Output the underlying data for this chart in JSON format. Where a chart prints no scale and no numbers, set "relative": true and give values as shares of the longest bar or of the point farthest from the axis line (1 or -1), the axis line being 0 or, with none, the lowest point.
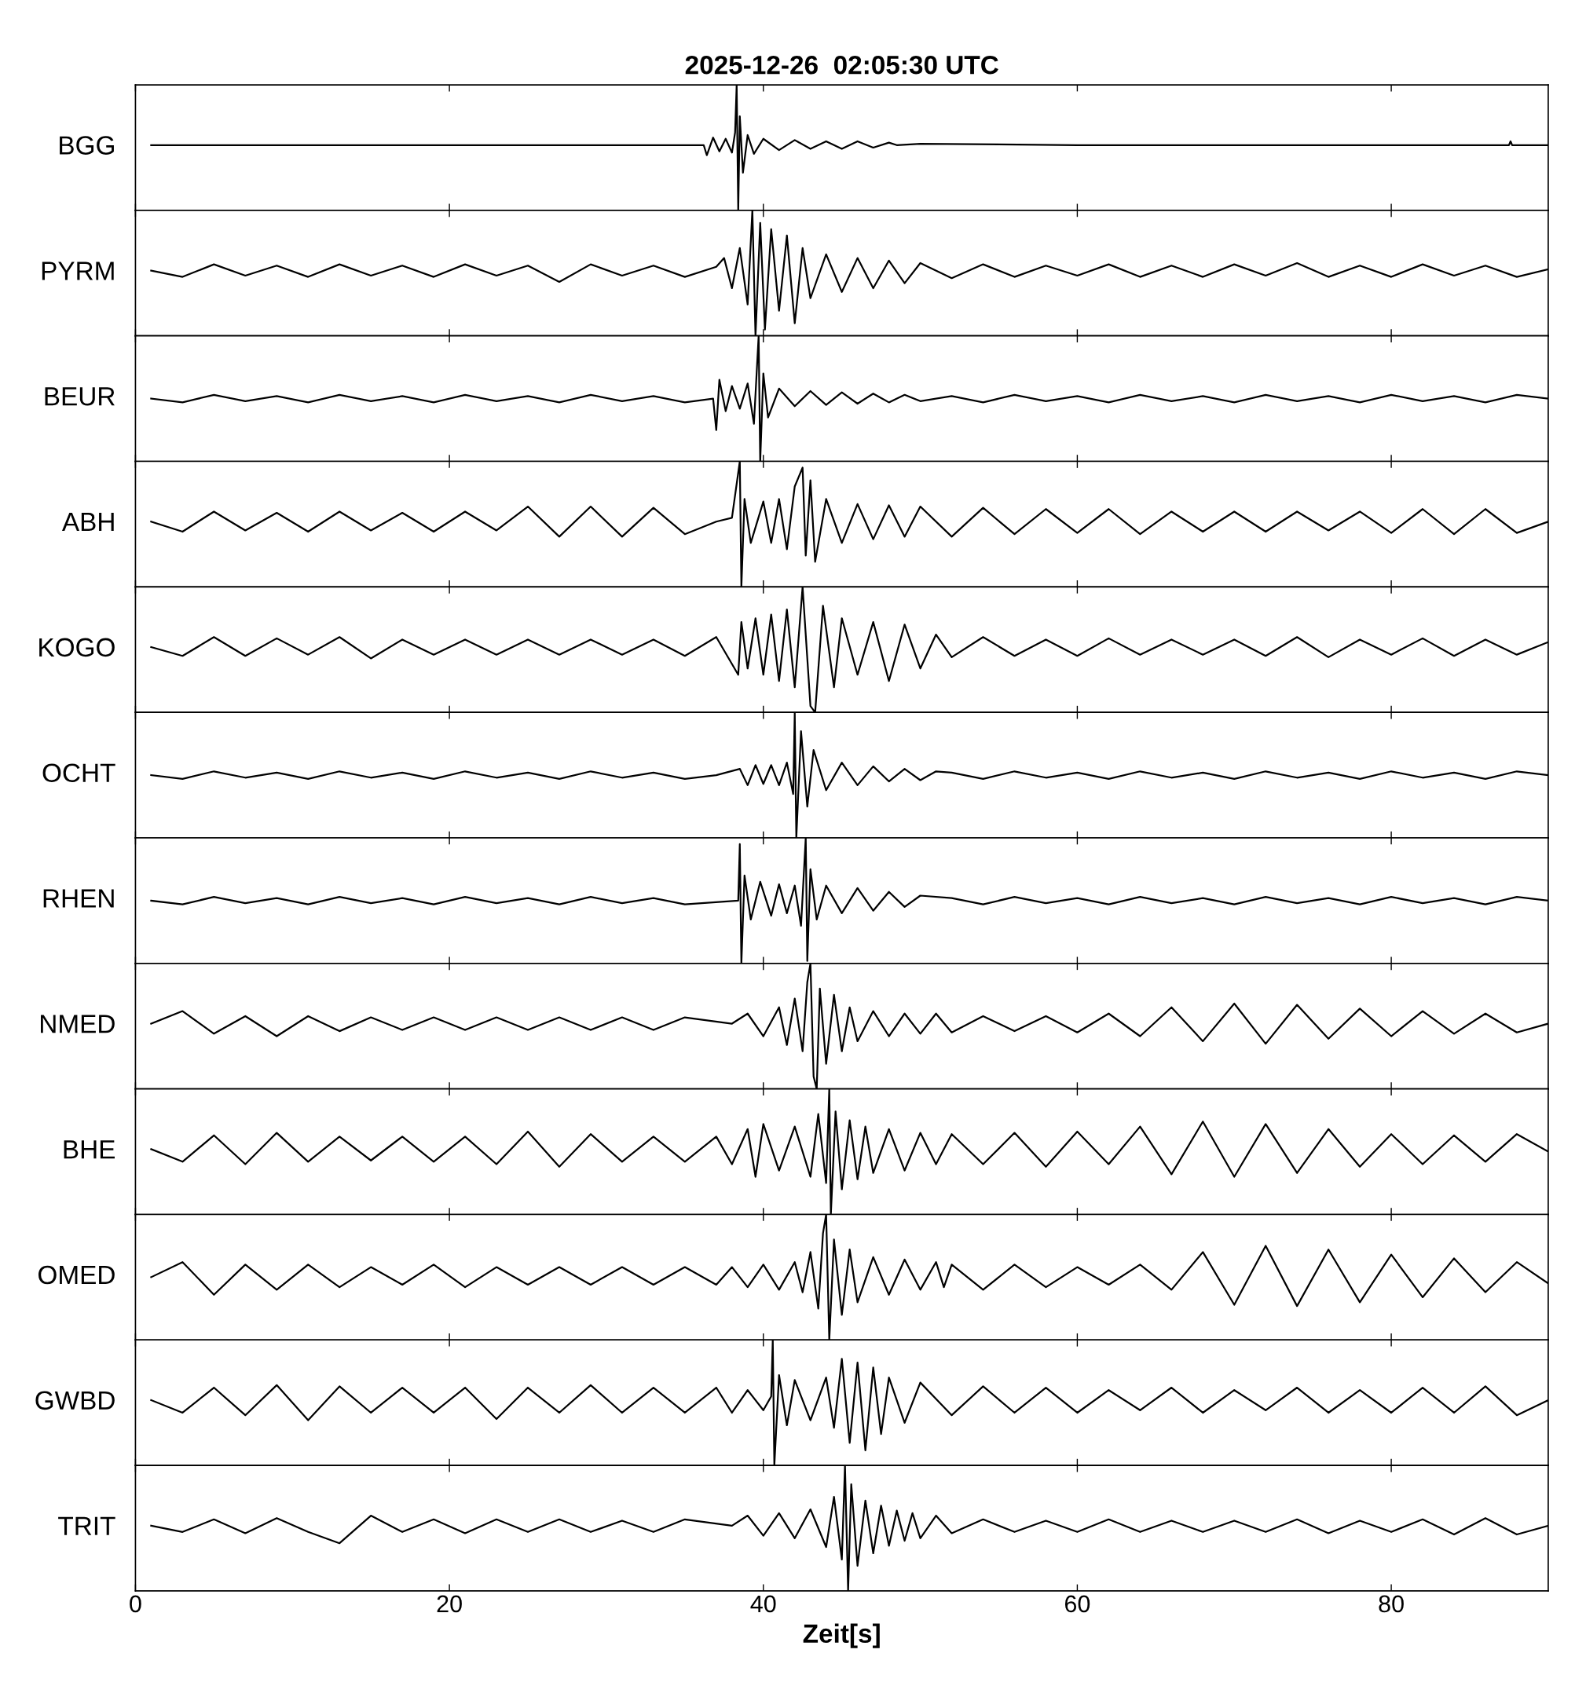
{
  "chart_data": [
    {
      "type": "line",
      "title": "2025-12-26  02:05:30 UTC",
      "ylabel": "BGG",
      "relative": true,
      "xlim": [
        0,
        90
      ],
      "xticks": [
        0,
        20,
        40,
        60,
        80
      ],
      "tick_labels": false,
      "series": [
        {
          "color": "#000000",
          "x": [
            1,
            10,
            20,
            30,
            36.2,
            36.4,
            36.8,
            37.2,
            37.6,
            38.0,
            38.2,
            38.3,
            38.4,
            38.5,
            38.7,
            39.0,
            39.4,
            40,
            41,
            42,
            43,
            44,
            45,
            46,
            47,
            48,
            48.5,
            50,
            60,
            70,
            87.5,
            87.6,
            87.7,
            90
          ],
          "values": [
            0.52,
            0.52,
            0.52,
            0.52,
            0.52,
            0.44,
            0.58,
            0.47,
            0.57,
            0.46,
            0.62,
            1.0,
            0.0,
            0.75,
            0.3,
            0.6,
            0.45,
            0.57,
            0.48,
            0.56,
            0.49,
            0.55,
            0.49,
            0.55,
            0.5,
            0.54,
            0.52,
            0.53,
            0.52,
            0.52,
            0.52,
            0.55,
            0.52,
            0.52
          ]
        }
      ]
    },
    {
      "type": "line",
      "ylabel": "PYRM",
      "relative": true,
      "xlim": [
        0,
        90
      ],
      "xticks": [
        0,
        20,
        40,
        60,
        80
      ],
      "tick_labels": false,
      "series": [
        {
          "color": "#000000",
          "x": [
            1,
            3,
            5,
            7,
            9,
            11,
            13,
            15,
            17,
            19,
            21,
            23,
            25,
            27,
            29,
            31,
            33,
            35,
            37,
            37.5,
            38,
            38.5,
            39,
            39.3,
            39.5,
            39.8,
            40.1,
            40.5,
            41,
            41.5,
            42,
            42.5,
            43,
            44,
            45,
            46,
            47,
            48,
            49,
            50,
            52,
            54,
            56,
            58,
            60,
            62,
            64,
            66,
            68,
            70,
            72,
            74,
            76,
            78,
            80,
            82,
            84,
            86,
            88,
            90
          ],
          "values": [
            0.52,
            0.47,
            0.57,
            0.48,
            0.56,
            0.47,
            0.57,
            0.48,
            0.56,
            0.47,
            0.57,
            0.48,
            0.56,
            0.43,
            0.57,
            0.48,
            0.56,
            0.47,
            0.55,
            0.62,
            0.38,
            0.7,
            0.25,
            1.0,
            0.0,
            0.9,
            0.05,
            0.85,
            0.2,
            0.8,
            0.1,
            0.7,
            0.3,
            0.65,
            0.35,
            0.62,
            0.38,
            0.6,
            0.42,
            0.58,
            0.46,
            0.57,
            0.47,
            0.56,
            0.48,
            0.57,
            0.47,
            0.56,
            0.47,
            0.57,
            0.48,
            0.58,
            0.47,
            0.56,
            0.47,
            0.57,
            0.48,
            0.56,
            0.47,
            0.53
          ]
        }
      ]
    },
    {
      "type": "line",
      "ylabel": "BEUR",
      "relative": true,
      "xlim": [
        0,
        90
      ],
      "xticks": [
        0,
        20,
        40,
        60,
        80
      ],
      "tick_labels": false,
      "series": [
        {
          "color": "#000000",
          "x": [
            1,
            3,
            5,
            7,
            9,
            11,
            13,
            15,
            17,
            19,
            21,
            23,
            25,
            27,
            29,
            31,
            33,
            35,
            36.8,
            37.0,
            37.2,
            37.6,
            38,
            38.5,
            39,
            39.4,
            39.7,
            39.8,
            40,
            40.3,
            41,
            42,
            43,
            44,
            45,
            46,
            47,
            48,
            49,
            50,
            52,
            54,
            56,
            58,
            60,
            62,
            64,
            66,
            68,
            70,
            72,
            74,
            76,
            78,
            80,
            82,
            84,
            86,
            88,
            90
          ],
          "values": [
            0.5,
            0.47,
            0.53,
            0.48,
            0.52,
            0.47,
            0.53,
            0.48,
            0.52,
            0.47,
            0.53,
            0.48,
            0.52,
            0.47,
            0.53,
            0.48,
            0.52,
            0.47,
            0.5,
            0.25,
            0.65,
            0.4,
            0.6,
            0.42,
            0.62,
            0.3,
            1.0,
            0.0,
            0.7,
            0.35,
            0.58,
            0.44,
            0.56,
            0.45,
            0.55,
            0.46,
            0.54,
            0.47,
            0.53,
            0.48,
            0.52,
            0.47,
            0.53,
            0.48,
            0.52,
            0.47,
            0.53,
            0.48,
            0.52,
            0.47,
            0.53,
            0.48,
            0.52,
            0.47,
            0.53,
            0.48,
            0.52,
            0.47,
            0.53,
            0.5
          ]
        }
      ]
    },
    {
      "type": "line",
      "ylabel": "ABH",
      "relative": true,
      "xlim": [
        0,
        90
      ],
      "xticks": [
        0,
        20,
        40,
        60,
        80
      ],
      "tick_labels": false,
      "series": [
        {
          "color": "#000000",
          "x": [
            1,
            3,
            5,
            7,
            9,
            11,
            13,
            15,
            17,
            19,
            21,
            23,
            25,
            27,
            29,
            31,
            33,
            35,
            37,
            38,
            38.5,
            38.6,
            38.8,
            39.2,
            40,
            40.5,
            41,
            41.5,
            42,
            42.5,
            42.7,
            43,
            43.3,
            44,
            45,
            46,
            47,
            48,
            49,
            50,
            52,
            54,
            56,
            58,
            60,
            62,
            64,
            66,
            68,
            70,
            72,
            74,
            76,
            78,
            80,
            82,
            84,
            86,
            88,
            90
          ],
          "values": [
            0.52,
            0.44,
            0.6,
            0.45,
            0.59,
            0.44,
            0.6,
            0.45,
            0.59,
            0.44,
            0.6,
            0.45,
            0.64,
            0.4,
            0.64,
            0.4,
            0.63,
            0.42,
            0.52,
            0.55,
            1.0,
            0.0,
            0.7,
            0.35,
            0.68,
            0.35,
            0.7,
            0.3,
            0.8,
            0.95,
            0.25,
            0.85,
            0.2,
            0.7,
            0.35,
            0.66,
            0.38,
            0.65,
            0.4,
            0.64,
            0.4,
            0.63,
            0.42,
            0.62,
            0.43,
            0.62,
            0.42,
            0.6,
            0.44,
            0.6,
            0.44,
            0.6,
            0.45,
            0.6,
            0.43,
            0.62,
            0.42,
            0.62,
            0.43,
            0.52
          ]
        }
      ]
    },
    {
      "type": "line",
      "ylabel": "KOGO",
      "relative": true,
      "xlim": [
        0,
        90
      ],
      "xticks": [
        0,
        20,
        40,
        60,
        80
      ],
      "tick_labels": false,
      "series": [
        {
          "color": "#000000",
          "x": [
            1,
            3,
            5,
            7,
            9,
            11,
            13,
            15,
            17,
            19,
            21,
            23,
            25,
            27,
            29,
            31,
            33,
            35,
            37,
            38.4,
            38.6,
            39,
            39.5,
            40,
            40.5,
            41,
            41.5,
            42,
            42.5,
            43,
            43.3,
            43.8,
            44.5,
            45,
            46,
            47,
            48,
            49,
            50,
            51,
            52,
            54,
            56,
            58,
            60,
            62,
            64,
            66,
            68,
            70,
            72,
            74,
            76,
            78,
            80,
            82,
            84,
            86,
            88,
            90
          ],
          "values": [
            0.52,
            0.45,
            0.6,
            0.45,
            0.59,
            0.46,
            0.6,
            0.43,
            0.58,
            0.46,
            0.58,
            0.46,
            0.58,
            0.46,
            0.58,
            0.46,
            0.58,
            0.45,
            0.6,
            0.3,
            0.72,
            0.35,
            0.75,
            0.3,
            0.78,
            0.25,
            0.82,
            0.2,
            1.0,
            0.05,
            0.0,
            0.85,
            0.2,
            0.75,
            0.3,
            0.72,
            0.25,
            0.7,
            0.35,
            0.62,
            0.44,
            0.6,
            0.45,
            0.58,
            0.45,
            0.59,
            0.46,
            0.58,
            0.46,
            0.58,
            0.45,
            0.6,
            0.44,
            0.58,
            0.46,
            0.59,
            0.45,
            0.58,
            0.46,
            0.56
          ]
        }
      ]
    },
    {
      "type": "line",
      "ylabel": "OCHT",
      "relative": true,
      "xlim": [
        0,
        90
      ],
      "xticks": [
        0,
        20,
        40,
        60,
        80
      ],
      "tick_labels": false,
      "series": [
        {
          "color": "#000000",
          "x": [
            1,
            3,
            5,
            7,
            9,
            11,
            13,
            15,
            17,
            19,
            21,
            23,
            25,
            27,
            29,
            31,
            33,
            35,
            37,
            38.5,
            39,
            39.5,
            40,
            40.5,
            41,
            41.5,
            41.9,
            42.0,
            42.1,
            42.4,
            42.8,
            43.2,
            44,
            45,
            46,
            47,
            48,
            49,
            50,
            51,
            52,
            54,
            56,
            58,
            60,
            62,
            64,
            66,
            68,
            70,
            72,
            74,
            76,
            78,
            80,
            82,
            84,
            86,
            88,
            90
          ],
          "values": [
            0.5,
            0.47,
            0.53,
            0.48,
            0.52,
            0.47,
            0.53,
            0.48,
            0.52,
            0.47,
            0.53,
            0.48,
            0.52,
            0.47,
            0.53,
            0.48,
            0.52,
            0.47,
            0.5,
            0.55,
            0.42,
            0.58,
            0.43,
            0.58,
            0.42,
            0.6,
            0.35,
            1.0,
            0.0,
            0.85,
            0.25,
            0.7,
            0.38,
            0.6,
            0.42,
            0.57,
            0.45,
            0.55,
            0.46,
            0.53,
            0.52,
            0.47,
            0.53,
            0.48,
            0.52,
            0.47,
            0.53,
            0.48,
            0.52,
            0.47,
            0.53,
            0.48,
            0.52,
            0.47,
            0.53,
            0.48,
            0.52,
            0.47,
            0.53,
            0.5
          ]
        }
      ]
    },
    {
      "type": "line",
      "ylabel": "RHEN",
      "relative": true,
      "xlim": [
        0,
        90
      ],
      "xticks": [
        0,
        20,
        40,
        60,
        80
      ],
      "tick_labels": false,
      "series": [
        {
          "color": "#000000",
          "x": [
            1,
            3,
            5,
            7,
            9,
            11,
            13,
            15,
            17,
            19,
            21,
            23,
            25,
            27,
            29,
            31,
            33,
            35,
            38.4,
            38.5,
            38.6,
            38.8,
            39.2,
            39.8,
            40.5,
            41,
            41.5,
            42,
            42.4,
            42.7,
            42.8,
            43.0,
            43.4,
            44,
            45,
            46,
            47,
            48,
            49,
            50,
            52,
            54,
            56,
            58,
            60,
            62,
            64,
            66,
            68,
            70,
            72,
            74,
            76,
            78,
            80,
            82,
            84,
            86,
            88,
            90
          ],
          "values": [
            0.5,
            0.47,
            0.53,
            0.48,
            0.52,
            0.47,
            0.53,
            0.48,
            0.52,
            0.47,
            0.53,
            0.48,
            0.52,
            0.47,
            0.53,
            0.48,
            0.52,
            0.47,
            0.5,
            0.95,
            0.0,
            0.7,
            0.35,
            0.65,
            0.38,
            0.63,
            0.4,
            0.62,
            0.3,
            1.0,
            0.02,
            0.75,
            0.35,
            0.62,
            0.4,
            0.6,
            0.42,
            0.57,
            0.45,
            0.54,
            0.52,
            0.47,
            0.53,
            0.48,
            0.52,
            0.47,
            0.53,
            0.48,
            0.52,
            0.47,
            0.53,
            0.48,
            0.52,
            0.47,
            0.53,
            0.48,
            0.52,
            0.47,
            0.53,
            0.5
          ]
        }
      ]
    },
    {
      "type": "line",
      "ylabel": "NMED",
      "relative": true,
      "xlim": [
        0,
        90
      ],
      "xticks": [
        0,
        20,
        40,
        60,
        80
      ],
      "tick_labels": false,
      "series": [
        {
          "color": "#000000",
          "x": [
            1,
            3,
            5,
            7,
            9,
            11,
            13,
            15,
            17,
            19,
            21,
            23,
            25,
            27,
            29,
            31,
            33,
            35,
            38,
            39,
            40,
            41,
            41.5,
            42,
            42.5,
            42.8,
            43,
            43.2,
            43.4,
            43.6,
            44,
            44.5,
            45,
            45.5,
            46,
            47,
            48,
            49,
            50,
            51,
            52,
            54,
            56,
            58,
            60,
            62,
            64,
            66,
            68,
            70,
            72,
            74,
            76,
            78,
            80,
            82,
            84,
            86,
            88,
            90
          ],
          "values": [
            0.52,
            0.62,
            0.44,
            0.58,
            0.42,
            0.58,
            0.46,
            0.57,
            0.47,
            0.57,
            0.47,
            0.57,
            0.47,
            0.57,
            0.47,
            0.57,
            0.47,
            0.57,
            0.52,
            0.6,
            0.42,
            0.65,
            0.35,
            0.72,
            0.3,
            0.85,
            1.0,
            0.1,
            0.0,
            0.8,
            0.2,
            0.75,
            0.3,
            0.65,
            0.38,
            0.62,
            0.42,
            0.6,
            0.44,
            0.6,
            0.45,
            0.58,
            0.46,
            0.58,
            0.45,
            0.6,
            0.42,
            0.65,
            0.38,
            0.68,
            0.36,
            0.67,
            0.4,
            0.64,
            0.42,
            0.62,
            0.44,
            0.6,
            0.45,
            0.52
          ]
        }
      ]
    },
    {
      "type": "line",
      "ylabel": "BHE",
      "relative": true,
      "xlim": [
        0,
        90
      ],
      "xticks": [
        0,
        20,
        40,
        60,
        80
      ],
      "tick_labels": false,
      "series": [
        {
          "color": "#000000",
          "x": [
            1,
            3,
            5,
            7,
            9,
            11,
            13,
            15,
            17,
            19,
            21,
            23,
            25,
            27,
            29,
            31,
            33,
            35,
            37,
            38,
            39,
            39.5,
            40,
            41,
            42,
            43,
            43.5,
            44,
            44.2,
            44.3,
            44.6,
            45,
            45.5,
            46,
            46.5,
            47,
            48,
            49,
            50,
            51,
            52,
            54,
            56,
            58,
            60,
            62,
            64,
            66,
            68,
            70,
            72,
            74,
            76,
            78,
            80,
            82,
            84,
            86,
            88,
            90
          ],
          "values": [
            0.52,
            0.42,
            0.63,
            0.4,
            0.65,
            0.42,
            0.62,
            0.43,
            0.62,
            0.42,
            0.62,
            0.4,
            0.66,
            0.38,
            0.64,
            0.42,
            0.62,
            0.42,
            0.62,
            0.4,
            0.68,
            0.3,
            0.72,
            0.35,
            0.7,
            0.3,
            0.8,
            0.25,
            1.0,
            0.0,
            0.82,
            0.2,
            0.75,
            0.28,
            0.7,
            0.33,
            0.68,
            0.35,
            0.65,
            0.4,
            0.64,
            0.4,
            0.65,
            0.38,
            0.66,
            0.4,
            0.7,
            0.32,
            0.74,
            0.3,
            0.72,
            0.33,
            0.68,
            0.38,
            0.64,
            0.4,
            0.63,
            0.42,
            0.64,
            0.5
          ]
        }
      ]
    },
    {
      "type": "line",
      "ylabel": "OMED",
      "relative": true,
      "xlim": [
        0,
        90
      ],
      "xticks": [
        0,
        20,
        40,
        60,
        80
      ],
      "tick_labels": false,
      "series": [
        {
          "color": "#000000",
          "x": [
            1,
            3,
            5,
            7,
            9,
            11,
            13,
            15,
            17,
            19,
            21,
            23,
            25,
            27,
            29,
            31,
            33,
            35,
            37,
            38,
            39,
            40,
            41,
            42,
            42.5,
            43,
            43.5,
            43.8,
            44,
            44.2,
            44.5,
            45,
            45.5,
            46,
            47,
            48,
            49,
            50,
            51,
            51.5,
            52,
            54,
            56,
            58,
            60,
            62,
            64,
            66,
            68,
            70,
            72,
            74,
            76,
            78,
            80,
            82,
            84,
            86,
            88,
            90
          ],
          "values": [
            0.5,
            0.62,
            0.36,
            0.6,
            0.4,
            0.6,
            0.42,
            0.58,
            0.44,
            0.6,
            0.42,
            0.58,
            0.44,
            0.58,
            0.44,
            0.58,
            0.44,
            0.58,
            0.44,
            0.58,
            0.42,
            0.6,
            0.4,
            0.62,
            0.38,
            0.7,
            0.25,
            0.85,
            1.0,
            0.0,
            0.8,
            0.2,
            0.72,
            0.3,
            0.66,
            0.36,
            0.64,
            0.4,
            0.62,
            0.42,
            0.6,
            0.4,
            0.6,
            0.42,
            0.58,
            0.44,
            0.6,
            0.4,
            0.7,
            0.28,
            0.75,
            0.27,
            0.72,
            0.3,
            0.68,
            0.34,
            0.65,
            0.38,
            0.62,
            0.45
          ]
        }
      ]
    },
    {
      "type": "line",
      "ylabel": "GWBD",
      "relative": true,
      "xlim": [
        0,
        90
      ],
      "xticks": [
        0,
        20,
        40,
        60,
        80
      ],
      "tick_labels": false,
      "series": [
        {
          "color": "#000000",
          "x": [
            1,
            3,
            5,
            7,
            9,
            11,
            13,
            15,
            17,
            19,
            21,
            23,
            25,
            27,
            29,
            31,
            33,
            35,
            37,
            38,
            39,
            40,
            40.5,
            40.6,
            40.7,
            41,
            41.5,
            42,
            43,
            44,
            44.5,
            45,
            45.5,
            46,
            46.5,
            47,
            47.5,
            48,
            49,
            50,
            52,
            54,
            56,
            58,
            60,
            62,
            64,
            66,
            68,
            70,
            72,
            74,
            76,
            78,
            80,
            82,
            84,
            86,
            88,
            90
          ],
          "values": [
            0.52,
            0.42,
            0.62,
            0.4,
            0.64,
            0.36,
            0.63,
            0.42,
            0.62,
            0.42,
            0.62,
            0.37,
            0.62,
            0.42,
            0.64,
            0.42,
            0.62,
            0.42,
            0.62,
            0.42,
            0.6,
            0.44,
            0.55,
            1.0,
            0.0,
            0.72,
            0.32,
            0.68,
            0.36,
            0.7,
            0.3,
            0.85,
            0.18,
            0.82,
            0.12,
            0.78,
            0.25,
            0.7,
            0.34,
            0.66,
            0.4,
            0.63,
            0.42,
            0.62,
            0.42,
            0.6,
            0.44,
            0.62,
            0.42,
            0.6,
            0.44,
            0.62,
            0.42,
            0.6,
            0.42,
            0.62,
            0.42,
            0.63,
            0.4,
            0.52
          ]
        }
      ]
    },
    {
      "type": "line",
      "ylabel": "TRIT",
      "xlabel": "Zeit[s]",
      "relative": true,
      "xlim": [
        0,
        90
      ],
      "xticks": [
        0,
        20,
        40,
        60,
        80
      ],
      "tick_labels": "x",
      "series": [
        {
          "color": "#000000",
          "x": [
            1,
            3,
            5,
            7,
            9,
            11,
            13,
            15,
            17,
            19,
            21,
            23,
            25,
            27,
            29,
            31,
            33,
            35,
            38,
            39,
            40,
            41,
            42,
            43,
            44,
            44.5,
            45,
            45.2,
            45.4,
            45.6,
            46,
            46.5,
            47,
            47.5,
            48,
            48.5,
            49,
            49.5,
            50,
            51,
            52,
            54,
            56,
            58,
            60,
            62,
            64,
            66,
            68,
            70,
            72,
            74,
            76,
            78,
            80,
            82,
            84,
            86,
            88,
            90
          ],
          "values": [
            0.52,
            0.47,
            0.57,
            0.46,
            0.58,
            0.47,
            0.38,
            0.6,
            0.47,
            0.57,
            0.46,
            0.57,
            0.47,
            0.57,
            0.47,
            0.56,
            0.47,
            0.57,
            0.52,
            0.6,
            0.44,
            0.62,
            0.42,
            0.65,
            0.35,
            0.75,
            0.25,
            1.0,
            0.0,
            0.85,
            0.2,
            0.72,
            0.3,
            0.68,
            0.36,
            0.64,
            0.4,
            0.62,
            0.42,
            0.6,
            0.46,
            0.57,
            0.47,
            0.56,
            0.47,
            0.57,
            0.47,
            0.56,
            0.47,
            0.56,
            0.47,
            0.57,
            0.46,
            0.56,
            0.47,
            0.57,
            0.45,
            0.58,
            0.45,
            0.52
          ]
        }
      ]
    }
  ]
}
